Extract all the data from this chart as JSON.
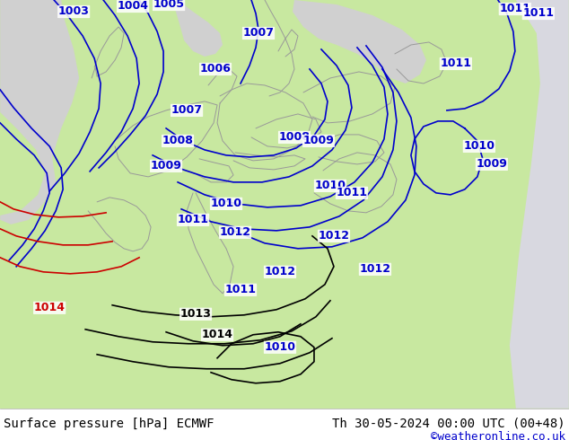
{
  "title_left": "Surface pressure [hPa] ECMWF",
  "title_right": "Th 30-05-2024 00:00 UTC (00+48)",
  "credit": "©weatheronline.co.uk",
  "figsize": [
    6.34,
    4.9
  ],
  "dpi": 100,
  "blue": "#0000cc",
  "black": "#000000",
  "red": "#cc0000",
  "land_green": "#c8e8a0",
  "sea_gray": "#d0d0d0",
  "border_gray": "#999999",
  "bg_white": "#ffffff",
  "label_fs": 9
}
